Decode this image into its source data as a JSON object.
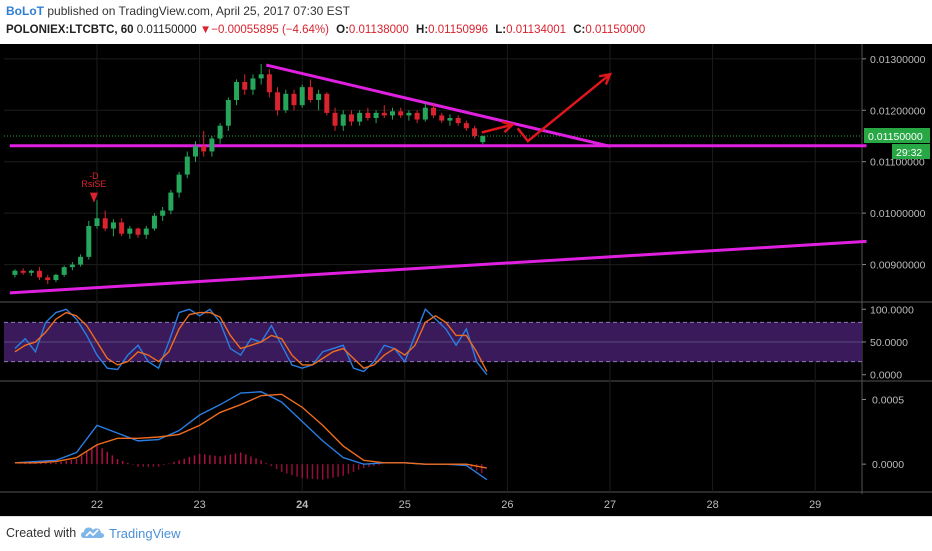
{
  "header": {
    "author": "BoLoT",
    "published_text": "published on TradingView.com, April 25, 2017 07:30 EST",
    "symbol": "POLONIEX:LTCBTC, 60",
    "last": "0.01150000",
    "change": "−0.00055895 (−4.64%)",
    "open_label": "O:",
    "open": "0.01138000",
    "high_label": "H:",
    "high": "0.01150996",
    "low_label": "L:",
    "low": "0.01134001",
    "close_label": "C:",
    "close": "0.01150000"
  },
  "footer": {
    "created_with": "Created with",
    "brand": "TradingView"
  },
  "colors": {
    "background": "#000000",
    "up": "#26a65b",
    "down": "#d9232e",
    "trendline": "#e020e0",
    "arrow": "#e0161d",
    "stoch_k": "#2a7de1",
    "stoch_d": "#ee6c1e",
    "stoch_band": "#3a1a5a",
    "price_tag": "#27a844"
  },
  "chart_data": [
    {
      "type": "candlestick",
      "x_ticks": [
        "22",
        "23",
        "24",
        "25",
        "26",
        "27",
        "28",
        "29"
      ],
      "y_ticks": [
        "0.01300000",
        "0.01200000",
        "0.01100000",
        "0.01000000",
        "0.00900000"
      ],
      "ylim": [
        0.00835,
        0.01325
      ],
      "last_price_label": "0.01150000",
      "countdown_label": "29:32",
      "annotation_lines": [
        "-D",
        "RsiSE"
      ],
      "trendlines": [
        {
          "name": "resistance",
          "from": [
            23.65,
            0.01288
          ],
          "to": [
            27.0,
            0.0113
          ]
        },
        {
          "name": "horizontal support",
          "from": [
            21.15,
            0.01131
          ],
          "to": [
            29.5,
            0.01131
          ]
        },
        {
          "name": "rising support",
          "from": [
            21.15,
            0.00845
          ],
          "to": [
            29.5,
            0.00945
          ]
        }
      ],
      "projection_arrows": [
        {
          "points": [
            [
              25.75,
              0.01157
            ],
            [
              26.05,
              0.01172
            ]
          ]
        },
        {
          "points": [
            [
              26.1,
              0.01165
            ],
            [
              26.2,
              0.0114
            ],
            [
              27.0,
              0.0127
            ]
          ]
        }
      ],
      "candles": [
        [
          21.2,
          0.0088,
          0.00891,
          0.00875,
          0.00888
        ],
        [
          21.28,
          0.00888,
          0.00893,
          0.0088,
          0.00884
        ],
        [
          21.36,
          0.00884,
          0.0089,
          0.00878,
          0.00888
        ],
        [
          21.44,
          0.00888,
          0.00895,
          0.0087,
          0.00875
        ],
        [
          21.52,
          0.00875,
          0.0088,
          0.00862,
          0.0087
        ],
        [
          21.6,
          0.0087,
          0.00882,
          0.00866,
          0.0088
        ],
        [
          21.68,
          0.0088,
          0.00898,
          0.00876,
          0.00895
        ],
        [
          21.76,
          0.00895,
          0.00905,
          0.00889,
          0.009
        ],
        [
          21.84,
          0.009,
          0.0092,
          0.00896,
          0.00915
        ],
        [
          21.92,
          0.00915,
          0.00985,
          0.0091,
          0.00975
        ],
        [
          22.0,
          0.00975,
          0.01025,
          0.0097,
          0.0099
        ],
        [
          22.08,
          0.0099,
          0.01005,
          0.00965,
          0.0097
        ],
        [
          22.16,
          0.0097,
          0.00988,
          0.00955,
          0.00982
        ],
        [
          22.24,
          0.00982,
          0.0099,
          0.00955,
          0.0096
        ],
        [
          22.32,
          0.0096,
          0.00975,
          0.0095,
          0.0097
        ],
        [
          22.4,
          0.0097,
          0.00972,
          0.00952,
          0.00958
        ],
        [
          22.48,
          0.00958,
          0.00975,
          0.0095,
          0.0097
        ],
        [
          22.56,
          0.0097,
          0.01,
          0.00966,
          0.00995
        ],
        [
          22.64,
          0.00995,
          0.01012,
          0.00985,
          0.01005
        ],
        [
          22.72,
          0.01005,
          0.01045,
          0.00998,
          0.0104
        ],
        [
          22.8,
          0.0104,
          0.0108,
          0.0103,
          0.01075
        ],
        [
          22.88,
          0.01075,
          0.0112,
          0.01068,
          0.0111
        ],
        [
          22.96,
          0.0111,
          0.0114,
          0.011,
          0.0113
        ],
        [
          23.04,
          0.0113,
          0.0116,
          0.0111,
          0.0112
        ],
        [
          23.12,
          0.0112,
          0.0115,
          0.0111,
          0.01145
        ],
        [
          23.2,
          0.01145,
          0.01175,
          0.01135,
          0.0117
        ],
        [
          23.28,
          0.0117,
          0.01225,
          0.0116,
          0.0122
        ],
        [
          23.36,
          0.0122,
          0.0126,
          0.0121,
          0.01255
        ],
        [
          23.44,
          0.01255,
          0.0127,
          0.0123,
          0.0124
        ],
        [
          23.52,
          0.0124,
          0.0127,
          0.0123,
          0.01262
        ],
        [
          23.6,
          0.01262,
          0.0129,
          0.0125,
          0.0127
        ],
        [
          23.68,
          0.0127,
          0.0128,
          0.01225,
          0.01235
        ],
        [
          23.76,
          0.01235,
          0.01245,
          0.0119,
          0.012
        ],
        [
          23.84,
          0.012,
          0.0124,
          0.01195,
          0.01232
        ],
        [
          23.92,
          0.01232,
          0.0124,
          0.012,
          0.0121
        ],
        [
          24.0,
          0.0121,
          0.0125,
          0.01205,
          0.01245
        ],
        [
          24.08,
          0.01245,
          0.0126,
          0.01215,
          0.0122
        ],
        [
          24.16,
          0.0122,
          0.0124,
          0.012,
          0.01232
        ],
        [
          24.24,
          0.01232,
          0.01235,
          0.0119,
          0.01195
        ],
        [
          24.32,
          0.01195,
          0.01205,
          0.0116,
          0.0117
        ],
        [
          24.4,
          0.0117,
          0.012,
          0.0116,
          0.01192
        ],
        [
          24.48,
          0.01192,
          0.012,
          0.0117,
          0.01178
        ],
        [
          24.56,
          0.01178,
          0.012,
          0.0117,
          0.01195
        ],
        [
          24.64,
          0.01195,
          0.01205,
          0.0118,
          0.01185
        ],
        [
          24.72,
          0.01185,
          0.012,
          0.01175,
          0.01195
        ],
        [
          24.8,
          0.01195,
          0.0121,
          0.01185,
          0.0119
        ],
        [
          24.88,
          0.0119,
          0.01205,
          0.01182,
          0.01198
        ],
        [
          24.96,
          0.01198,
          0.01205,
          0.01185,
          0.0119
        ],
        [
          25.04,
          0.0119,
          0.012,
          0.0118,
          0.01195
        ],
        [
          25.12,
          0.01195,
          0.012,
          0.01175,
          0.01182
        ],
        [
          25.2,
          0.01182,
          0.01215,
          0.01178,
          0.01205
        ],
        [
          25.28,
          0.01205,
          0.01212,
          0.01185,
          0.0119
        ],
        [
          25.36,
          0.0119,
          0.01195,
          0.01175,
          0.0118
        ],
        [
          25.44,
          0.0118,
          0.01192,
          0.0117,
          0.01185
        ],
        [
          25.52,
          0.01185,
          0.0119,
          0.0117,
          0.01175
        ],
        [
          25.6,
          0.01175,
          0.0118,
          0.0116,
          0.01165
        ],
        [
          25.68,
          0.01165,
          0.0117,
          0.01145,
          0.0115
        ],
        [
          25.76,
          0.01138,
          0.01151,
          0.01134,
          0.0115
        ]
      ]
    },
    {
      "type": "line",
      "name": "stochastic",
      "y_ticks": [
        "100.0000",
        "50.0000",
        "0.0000"
      ],
      "ylim": [
        -5,
        105
      ],
      "bands": [
        20,
        80
      ],
      "series": [
        {
          "x": [
            21.2,
            21.3,
            21.4,
            21.5,
            21.6,
            21.7,
            21.8,
            21.9,
            22.0,
            22.1,
            22.2,
            22.3,
            22.4,
            22.5,
            22.6,
            22.7,
            22.8,
            22.9,
            23.0,
            23.1,
            23.2,
            23.3,
            23.4,
            23.5,
            23.6,
            23.7,
            23.8,
            23.9,
            24.0,
            24.1,
            24.2,
            24.3,
            24.4,
            24.5,
            24.6,
            24.7,
            24.8,
            24.9,
            25.0,
            25.1,
            25.2,
            25.3,
            25.4,
            25.5,
            25.6,
            25.7,
            25.8
          ],
          "values": [
            40,
            55,
            35,
            80,
            95,
            100,
            85,
            60,
            30,
            10,
            8,
            30,
            45,
            20,
            10,
            50,
            95,
            100,
            90,
            100,
            80,
            40,
            30,
            55,
            50,
            75,
            45,
            15,
            10,
            15,
            35,
            40,
            45,
            10,
            5,
            20,
            45,
            40,
            20,
            60,
            100,
            85,
            70,
            45,
            70,
            20,
            0
          ]
        },
        {
          "x": [
            21.2,
            21.3,
            21.4,
            21.5,
            21.6,
            21.7,
            21.8,
            21.9,
            22.0,
            22.1,
            22.2,
            22.3,
            22.4,
            22.5,
            22.6,
            22.7,
            22.8,
            22.9,
            23.0,
            23.1,
            23.2,
            23.3,
            23.4,
            23.5,
            23.6,
            23.7,
            23.8,
            23.9,
            24.0,
            24.1,
            24.2,
            24.3,
            24.4,
            24.5,
            24.6,
            24.7,
            24.8,
            24.9,
            25.0,
            25.1,
            25.2,
            25.3,
            25.4,
            25.5,
            25.6,
            25.7,
            25.8
          ],
          "values": [
            35,
            45,
            50,
            65,
            85,
            95,
            90,
            75,
            50,
            25,
            15,
            20,
            35,
            30,
            20,
            35,
            70,
            92,
            95,
            95,
            88,
            60,
            40,
            45,
            50,
            60,
            55,
            30,
            15,
            15,
            25,
            35,
            40,
            25,
            10,
            15,
            30,
            40,
            30,
            45,
            80,
            90,
            80,
            60,
            60,
            35,
            5
          ]
        }
      ]
    },
    {
      "type": "line",
      "name": "macd",
      "y_ticks": [
        "0.0005",
        "0.0000"
      ],
      "ylim": [
        -0.0002,
        0.00062
      ],
      "series": [
        {
          "x": [
            21.2,
            21.4,
            21.6,
            21.8,
            22.0,
            22.2,
            22.4,
            22.6,
            22.8,
            23.0,
            23.2,
            23.4,
            23.6,
            23.8,
            24.0,
            24.2,
            24.4,
            24.6,
            24.8,
            25.0,
            25.2,
            25.4,
            25.6,
            25.8
          ],
          "values": [
            1e-05,
            2e-05,
            3e-05,
            9e-05,
            0.0003,
            0.00024,
            0.00018,
            0.00019,
            0.00026,
            0.00038,
            0.00046,
            0.00055,
            0.00056,
            0.00048,
            0.00033,
            0.00018,
            5e-05,
            0.0,
            1e-05,
            1e-05,
            0.0,
            0.0,
            -1e-05,
            -0.00012
          ]
        },
        {
          "x": [
            21.2,
            21.4,
            21.6,
            21.8,
            22.0,
            22.2,
            22.4,
            22.6,
            22.8,
            23.0,
            23.2,
            23.4,
            23.6,
            23.8,
            24.0,
            24.2,
            24.4,
            24.6,
            24.8,
            25.0,
            25.2,
            25.4,
            25.6,
            25.8
          ],
          "values": [
            1e-05,
            1e-05,
            2e-05,
            5e-05,
            0.00015,
            0.0002,
            0.0002,
            0.00021,
            0.00023,
            0.0003,
            0.0004,
            0.00046,
            0.00053,
            0.00054,
            0.00044,
            0.0003,
            0.00014,
            3e-05,
            1e-05,
            1e-05,
            0.0,
            0.0,
            0.0,
            -3e-05
          ]
        }
      ]
    }
  ]
}
